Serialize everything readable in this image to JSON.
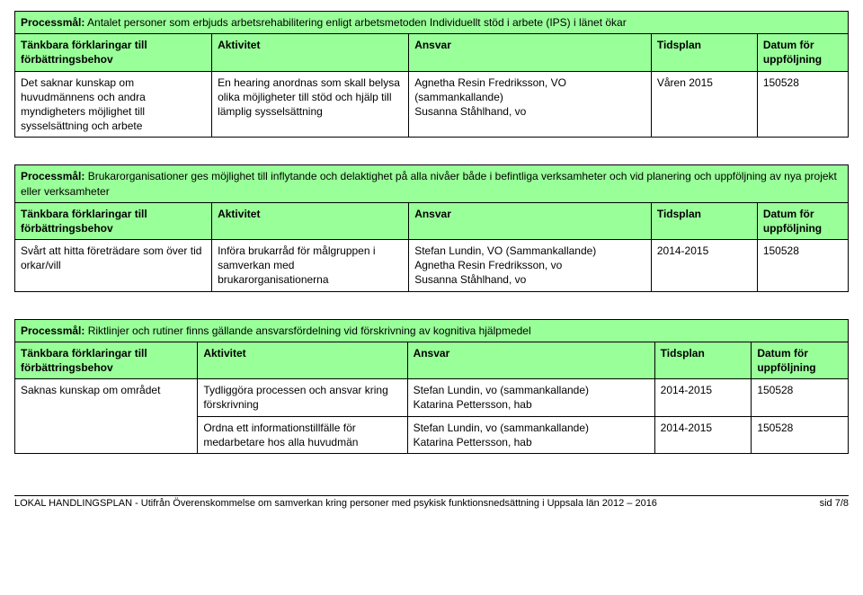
{
  "labels": {
    "processmal": "Processmål:",
    "col1": "Tänkbara förklaringar till förbättringsbehov",
    "col2": "Aktivitet",
    "col3": "Ansvar",
    "col4": "Tidsplan",
    "col5": "Datum för uppföljning"
  },
  "table1": {
    "title": " Antalet personer som erbjuds arbetsrehabilitering enligt arbetsmetoden Individuellt stöd i arbete (IPS) i länet ökar",
    "row": {
      "c1": "Det saknar kunskap om huvudmännens och andra myndigheters möjlighet till sysselsättning och arbete",
      "c2": "En hearing anordnas som skall belysa olika möjligheter till stöd och hjälp till lämplig sysselsättning",
      "c3": "Agnetha Resin Fredriksson, VO (sammankallande)\nSusanna Ståhlhand, vo",
      "c4": "Våren 2015",
      "c5": "150528"
    }
  },
  "table2": {
    "title": " Brukarorganisationer ges möjlighet till inflytande och delaktighet på alla nivåer både i befintliga verksamheter och vid planering och uppföljning av nya projekt eller verksamheter",
    "row": {
      "c1": "Svårt att hitta företrädare som över tid orkar/vill",
      "c2": "Införa brukarråd för målgruppen i samverkan med brukarorganisationerna",
      "c3": "Stefan Lundin, VO (Sammankallande)\nAgnetha Resin Fredriksson, vo\nSusanna Ståhlhand, vo",
      "c4": "2014-2015",
      "c5": "150528"
    }
  },
  "table3": {
    "title": " Riktlinjer och rutiner finns gällande ansvarsfördelning vid förskrivning av kognitiva hjälpmedel",
    "row1": {
      "c1": "Saknas kunskap om området",
      "c2": "Tydliggöra processen och ansvar kring förskrivning",
      "c3": "Stefan Lundin, vo (sammankallande)\nKatarina Pettersson, hab",
      "c4": "2014-2015",
      "c5": "150528"
    },
    "row2": {
      "c2": "Ordna ett informationstillfälle för medarbetare hos alla huvudmän",
      "c3": "Stefan Lundin, vo (sammankallande)\nKatarina Pettersson, hab",
      "c4": "2014-2015",
      "c5": "150528"
    }
  },
  "footer": {
    "text": "LOKAL HANDLINGSPLAN - Utifrån Överenskommelse om samverkan kring personer med psykisk funktionsnedsättning i Uppsala län 2012 – 2016",
    "page": "sid 7/8"
  }
}
